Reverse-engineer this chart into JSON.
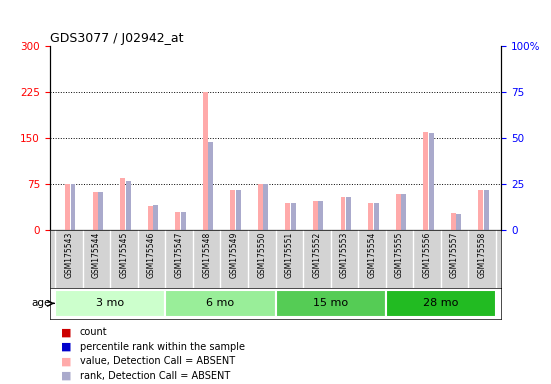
{
  "title": "GDS3077 / J02942_at",
  "samples": [
    "GSM175543",
    "GSM175544",
    "GSM175545",
    "GSM175546",
    "GSM175547",
    "GSM175548",
    "GSM175549",
    "GSM175550",
    "GSM175551",
    "GSM175552",
    "GSM175553",
    "GSM175554",
    "GSM175555",
    "GSM175556",
    "GSM175557",
    "GSM175558"
  ],
  "value_absent": [
    75,
    62,
    85,
    40,
    30,
    225,
    65,
    75,
    45,
    48,
    55,
    45,
    60,
    160,
    28,
    65
  ],
  "rank_absent_pct": [
    25,
    21,
    27,
    14,
    10,
    48,
    22,
    25,
    15,
    16,
    18,
    15,
    20,
    53,
    9,
    22
  ],
  "age_groups": [
    {
      "label": "3 mo",
      "start": 0,
      "end": 4
    },
    {
      "label": "6 mo",
      "start": 4,
      "end": 8
    },
    {
      "label": "15 mo",
      "start": 8,
      "end": 12
    },
    {
      "label": "28 mo",
      "start": 12,
      "end": 16
    }
  ],
  "age_colors": [
    "#ccffcc",
    "#99ee99",
    "#55cc55",
    "#22bb22"
  ],
  "ylim_left": [
    0,
    300
  ],
  "ylim_right": [
    0,
    100
  ],
  "yticks_left": [
    0,
    75,
    150,
    225,
    300
  ],
  "yticks_right": [
    0,
    25,
    50,
    75,
    100
  ],
  "value_color": "#ffaaaa",
  "rank_color": "#aaaacc",
  "bg_color": "#d3d3d3",
  "legend_colors": [
    "#cc0000",
    "#0000cc",
    "#ffaaaa",
    "#aaaacc"
  ],
  "legend_labels": [
    "count",
    "percentile rank within the sample",
    "value, Detection Call = ABSENT",
    "rank, Detection Call = ABSENT"
  ]
}
